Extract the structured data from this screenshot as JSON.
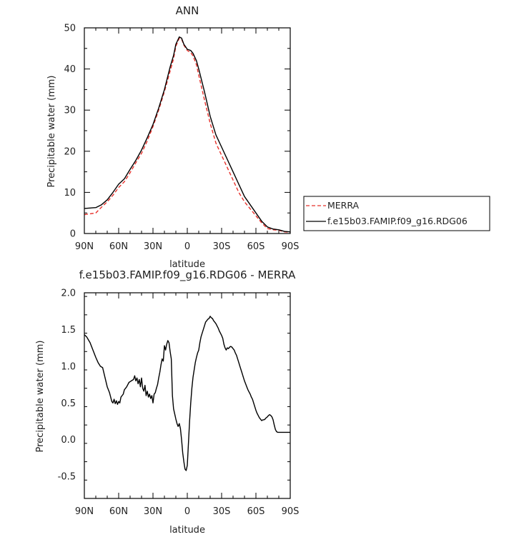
{
  "chart_data": [
    {
      "type": "line",
      "title": "ANN",
      "xlabel": "latitude",
      "ylabel": "Precipitable water (mm)",
      "ylim": [
        0,
        50
      ],
      "yticks": [
        "0",
        "10",
        "20",
        "30",
        "40",
        "50"
      ],
      "xlim": [
        -90,
        90
      ],
      "xticks": [
        "90N",
        "60N",
        "30N",
        "0",
        "30S",
        "60S",
        "90S"
      ],
      "legend_position": "right",
      "grid": false,
      "series": [
        {
          "name": "MERRA",
          "color": "#e8302a",
          "dash": "dashed",
          "x": [
            -90,
            -85,
            -80,
            -75,
            -70,
            -65,
            -60,
            -55,
            -50,
            -45,
            -40,
            -35,
            -30,
            -25,
            -20,
            -15,
            -12,
            -10,
            -7,
            -5,
            -3,
            0,
            3,
            5,
            8,
            10,
            15,
            20,
            25,
            30,
            35,
            40,
            45,
            50,
            55,
            60,
            65,
            70,
            75,
            80,
            85,
            90
          ],
          "y": [
            4.6,
            4.8,
            5.0,
            6.4,
            7.7,
            9.3,
            11.2,
            12.6,
            14.8,
            17.2,
            19.5,
            22.5,
            26.0,
            30.0,
            34.5,
            39.5,
            42.5,
            45.5,
            47.5,
            47.3,
            45.8,
            44.5,
            44.0,
            43.2,
            41.0,
            38.5,
            32.5,
            26.8,
            22.0,
            19.0,
            16.0,
            13.0,
            10.0,
            7.7,
            6.0,
            4.3,
            2.6,
            1.2,
            0.9,
            0.8,
            0.4,
            0.3
          ]
        },
        {
          "name": "f.e15b03.FAMIP.f09_g16.RDG06",
          "color": "#000000",
          "dash": "solid",
          "x": [
            -90,
            -85,
            -80,
            -75,
            -70,
            -65,
            -60,
            -55,
            -50,
            -45,
            -40,
            -35,
            -30,
            -25,
            -20,
            -15,
            -12,
            -10,
            -7,
            -5,
            -3,
            0,
            3,
            5,
            8,
            10,
            15,
            20,
            25,
            30,
            35,
            40,
            45,
            50,
            55,
            60,
            65,
            70,
            75,
            80,
            85,
            90
          ],
          "y": [
            6.1,
            6.2,
            6.3,
            7.0,
            8.2,
            10.0,
            12.0,
            13.3,
            15.6,
            17.8,
            20.3,
            23.3,
            26.5,
            30.5,
            35.0,
            40.5,
            43.3,
            46.0,
            47.8,
            47.5,
            46.0,
            44.8,
            44.5,
            43.8,
            42.0,
            40.0,
            34.5,
            28.5,
            24.0,
            21.0,
            18.0,
            15.0,
            12.0,
            9.0,
            7.0,
            5.0,
            3.0,
            1.6,
            1.1,
            0.9,
            0.5,
            0.4
          ]
        }
      ]
    },
    {
      "type": "line",
      "title": "f.e15b03.FAMIP.f09_g16.RDG06 - MERRA",
      "xlabel": "latitude",
      "ylabel": "Precipitable water (mm)",
      "ylim": [
        -0.8,
        2.0
      ],
      "yticks": [
        "-0.5",
        "0.0",
        "0.5",
        "1.0",
        "1.5",
        "2.0"
      ],
      "xlim": [
        -90,
        90
      ],
      "xticks": [
        "90N",
        "60N",
        "30N",
        "0",
        "30S",
        "60S",
        "90S"
      ],
      "grid": false,
      "series": [
        {
          "color": "#000000",
          "x": [
            -90,
            -88,
            -85,
            -82,
            -80,
            -78,
            -76,
            -74,
            -72,
            -70,
            -68,
            -66,
            -65,
            -64,
            -63,
            -62,
            -61,
            -60,
            -59,
            -58,
            -57,
            -56,
            -55,
            -53,
            -51,
            -49,
            -47,
            -46,
            -45,
            -44,
            -43,
            -42,
            -41,
            -40,
            -39,
            -38,
            -37,
            -36,
            -35,
            -34,
            -33,
            -32,
            -31,
            -30,
            -29,
            -28,
            -27,
            -26,
            -25,
            -24,
            -23,
            -22,
            -21,
            -20,
            -19,
            -18,
            -17,
            -16,
            -15,
            -14,
            -13,
            -12,
            -11,
            -10,
            -9,
            -8,
            -7,
            -6,
            -5,
            -4,
            -3,
            -2,
            -1,
            0,
            1,
            2,
            3,
            4,
            5,
            6,
            7,
            8,
            9,
            10,
            11,
            12,
            13,
            14,
            15,
            16,
            17,
            18,
            19,
            20,
            21,
            22,
            23,
            24,
            25,
            26,
            27,
            28,
            29,
            30,
            31,
            32,
            33,
            34,
            35,
            36,
            37,
            38,
            39,
            40,
            41,
            42,
            43,
            44,
            45,
            46,
            47,
            48,
            49,
            50,
            51,
            52,
            53,
            54,
            55,
            56,
            57,
            58,
            59,
            60,
            61,
            62,
            63,
            64,
            65,
            66,
            67,
            68,
            69,
            70,
            71,
            72,
            73,
            74,
            75,
            76,
            77,
            78,
            79,
            80,
            81,
            82,
            83,
            84,
            85,
            86,
            87,
            88,
            89,
            90
          ],
          "y": [
            1.43,
            1.4,
            1.32,
            1.2,
            1.12,
            1.05,
            1.0,
            0.98,
            0.85,
            0.72,
            0.64,
            0.52,
            0.5,
            0.55,
            0.49,
            0.53,
            0.48,
            0.52,
            0.5,
            0.58,
            0.6,
            0.62,
            0.68,
            0.72,
            0.78,
            0.8,
            0.82,
            0.87,
            0.8,
            0.84,
            0.76,
            0.82,
            0.72,
            0.84,
            0.7,
            0.66,
            0.74,
            0.6,
            0.66,
            0.58,
            0.62,
            0.56,
            0.6,
            0.5,
            0.62,
            0.64,
            0.7,
            0.75,
            0.84,
            0.92,
            1.02,
            1.1,
            1.07,
            1.28,
            1.22,
            1.3,
            1.35,
            1.32,
            1.2,
            1.1,
            0.6,
            0.42,
            0.35,
            0.28,
            0.22,
            0.18,
            0.22,
            0.15,
            0.0,
            -0.18,
            -0.3,
            -0.4,
            -0.42,
            -0.35,
            -0.05,
            0.25,
            0.5,
            0.7,
            0.85,
            0.95,
            1.05,
            1.12,
            1.18,
            1.22,
            1.32,
            1.4,
            1.45,
            1.5,
            1.55,
            1.6,
            1.62,
            1.64,
            1.65,
            1.68,
            1.66,
            1.65,
            1.62,
            1.6,
            1.58,
            1.55,
            1.52,
            1.48,
            1.45,
            1.42,
            1.38,
            1.3,
            1.25,
            1.22,
            1.25,
            1.24,
            1.26,
            1.27,
            1.26,
            1.24,
            1.22,
            1.18,
            1.15,
            1.1,
            1.05,
            1.0,
            0.95,
            0.9,
            0.85,
            0.8,
            0.76,
            0.72,
            0.68,
            0.65,
            0.62,
            0.58,
            0.55,
            0.5,
            0.45,
            0.4,
            0.36,
            0.33,
            0.3,
            0.28,
            0.26,
            0.27,
            0.27,
            0.28,
            0.3,
            0.31,
            0.33,
            0.34,
            0.33,
            0.31,
            0.27,
            0.2,
            0.14,
            0.11,
            0.1,
            0.1,
            0.1,
            0.1,
            0.1,
            0.1,
            0.1,
            0.1,
            0.1,
            0.1,
            0.1,
            0.1
          ]
        }
      ]
    }
  ]
}
